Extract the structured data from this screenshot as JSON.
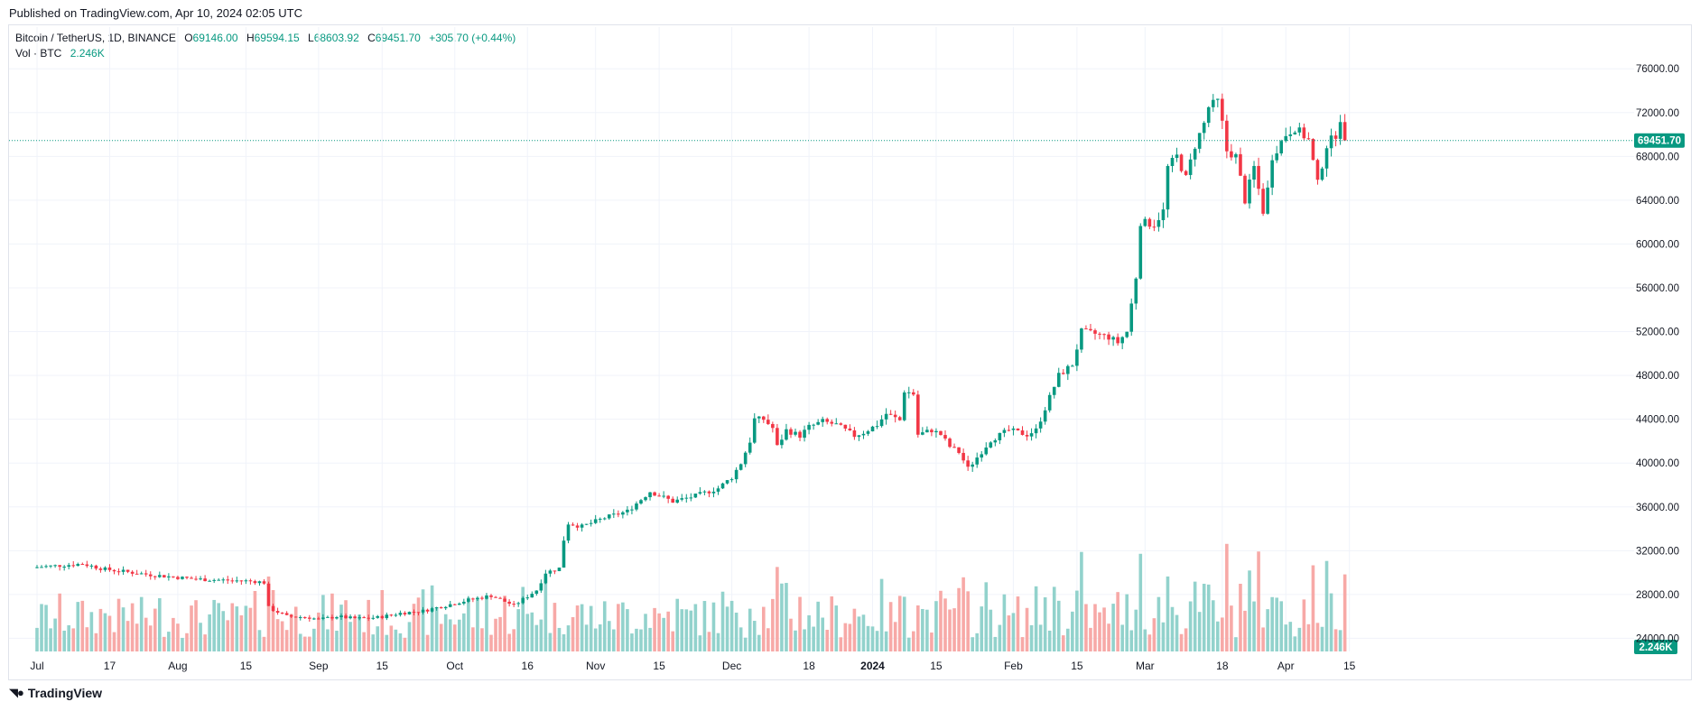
{
  "header": {
    "published": "Published on TradingView.com, Apr 10, 2024 02:05 UTC"
  },
  "legend": {
    "symbol": "Bitcoin / TetherUS, 1D, BINANCE",
    "open_label": "O",
    "open": "69146.00",
    "high_label": "H",
    "high": "69594.15",
    "low_label": "L",
    "low": "68603.92",
    "close_label": "C",
    "close": "69451.70",
    "change": "+305.70 (+0.44%)",
    "vol_label": "Vol · BTC",
    "vol_value": "2.246K"
  },
  "footer": {
    "brand": "TradingView",
    "logo_icon": "tradingview-logo-icon"
  },
  "colors": {
    "up": "#089981",
    "down": "#f23645",
    "vol_up": "#92d2cc",
    "vol_down": "#f7a9a7",
    "grid": "#f0f3fa",
    "last_price": "#089981"
  },
  "chart_data": {
    "type": "candlestick",
    "symbol": "BTCUSDT",
    "interval": "1D",
    "y_ticks": [
      "76000.00",
      "72000.00",
      "68000.00",
      "64000.00",
      "60000.00",
      "56000.00",
      "52000.00",
      "48000.00",
      "44000.00",
      "40000.00",
      "36000.00",
      "32000.00",
      "28000.00",
      "24000.00"
    ],
    "ylim": [
      22800,
      77500
    ],
    "x_ticks": [
      "Jul",
      "17",
      "Aug",
      "15",
      "Sep",
      "15",
      "Oct",
      "16",
      "Nov",
      "15",
      "Dec",
      "18",
      "2024",
      "15",
      "Feb",
      "15",
      "Mar",
      "18",
      "Apr",
      "15"
    ],
    "x_tick_days": [
      0,
      16,
      31,
      46,
      62,
      76,
      92,
      108,
      123,
      137,
      153,
      170,
      184,
      198,
      215,
      229,
      244,
      261,
      275,
      289
    ],
    "last_price": {
      "value": 69451.7,
      "label": "69451.70"
    },
    "last_volume_label": "2.246K",
    "volume_axis_max_k": 90,
    "key_closes": [
      [
        0,
        30500
      ],
      [
        10,
        30800
      ],
      [
        15,
        30300
      ],
      [
        25,
        29800
      ],
      [
        35,
        29400
      ],
      [
        45,
        29250
      ],
      [
        48,
        29200
      ],
      [
        50,
        29100
      ],
      [
        51,
        26800
      ],
      [
        55,
        26000
      ],
      [
        60,
        25900
      ],
      [
        62,
        25700
      ],
      [
        66,
        26000
      ],
      [
        70,
        25800
      ],
      [
        75,
        25900
      ],
      [
        80,
        26300
      ],
      [
        85,
        26500
      ],
      [
        90,
        27000
      ],
      [
        95,
        27500
      ],
      [
        100,
        27900
      ],
      [
        105,
        27000
      ],
      [
        110,
        28400
      ],
      [
        112,
        30000
      ],
      [
        115,
        30400
      ],
      [
        116,
        33000
      ],
      [
        117,
        34500
      ],
      [
        120,
        34200
      ],
      [
        125,
        35000
      ],
      [
        130,
        35600
      ],
      [
        135,
        37400
      ],
      [
        140,
        36500
      ],
      [
        145,
        37000
      ],
      [
        150,
        37700
      ],
      [
        153,
        38700
      ],
      [
        155,
        40000
      ],
      [
        157,
        42000
      ],
      [
        158,
        44000
      ],
      [
        160,
        44000
      ],
      [
        162,
        43200
      ],
      [
        163,
        41500
      ],
      [
        165,
        43000
      ],
      [
        168,
        42500
      ],
      [
        170,
        43300
      ],
      [
        173,
        43800
      ],
      [
        176,
        43500
      ],
      [
        180,
        42500
      ],
      [
        182,
        42800
      ],
      [
        185,
        43500
      ],
      [
        186,
        44000
      ],
      [
        187,
        44500
      ],
      [
        190,
        43900
      ],
      [
        191,
        46600
      ],
      [
        193,
        46300
      ],
      [
        194,
        42600
      ],
      [
        197,
        43000
      ],
      [
        199,
        42600
      ],
      [
        201,
        41500
      ],
      [
        203,
        41000
      ],
      [
        205,
        39500
      ],
      [
        206,
        40000
      ],
      [
        210,
        42100
      ],
      [
        214,
        43000
      ],
      [
        218,
        42600
      ],
      [
        220,
        43000
      ],
      [
        222,
        45000
      ],
      [
        225,
        48000
      ],
      [
        228,
        49000
      ],
      [
        230,
        52000
      ],
      [
        233,
        51800
      ],
      [
        236,
        51500
      ],
      [
        238,
        51000
      ],
      [
        240,
        52000
      ],
      [
        242,
        57000
      ],
      [
        243,
        62000
      ],
      [
        246,
        61800
      ],
      [
        248,
        63000
      ],
      [
        249,
        67000
      ],
      [
        251,
        68000
      ],
      [
        253,
        66000
      ],
      [
        255,
        69000
      ],
      [
        257,
        71000
      ],
      [
        258,
        72500
      ],
      [
        260,
        73000
      ],
      [
        261,
        71000
      ],
      [
        262,
        68500
      ],
      [
        264,
        68000
      ],
      [
        266,
        64000
      ],
      [
        268,
        67000
      ],
      [
        270,
        63000
      ],
      [
        271,
        65000
      ],
      [
        272,
        68000
      ],
      [
        275,
        70000
      ],
      [
        277,
        70600
      ],
      [
        280,
        69500
      ],
      [
        282,
        65500
      ],
      [
        284,
        69000
      ],
      [
        286,
        70000
      ],
      [
        287,
        71500
      ],
      [
        288,
        69451.7
      ]
    ]
  }
}
